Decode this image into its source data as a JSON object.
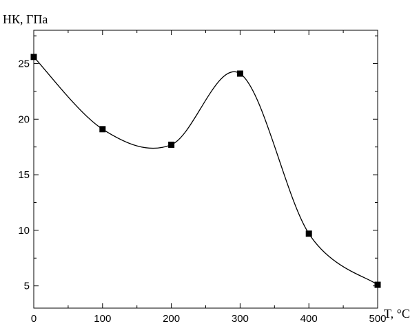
{
  "chart_data": {
    "type": "line",
    "title": "",
    "ylabel": "НК, ГПа",
    "xlabel": "T, °C",
    "x": [
      0,
      100,
      200,
      300,
      400,
      500
    ],
    "series": [
      {
        "values": [
          25.6,
          19.1,
          17.7,
          24.1,
          9.7,
          5.1
        ],
        "marker": "square"
      }
    ],
    "xlim": [
      0,
      500
    ],
    "ylim": [
      3,
      28
    ],
    "xticks": [
      "0",
      "100",
      "200",
      "300",
      "400",
      "500"
    ],
    "yticks": [
      "5",
      "10",
      "15",
      "20",
      "25"
    ],
    "grid": false,
    "colors": {
      "line": "#000000",
      "marker": "#000000"
    }
  }
}
